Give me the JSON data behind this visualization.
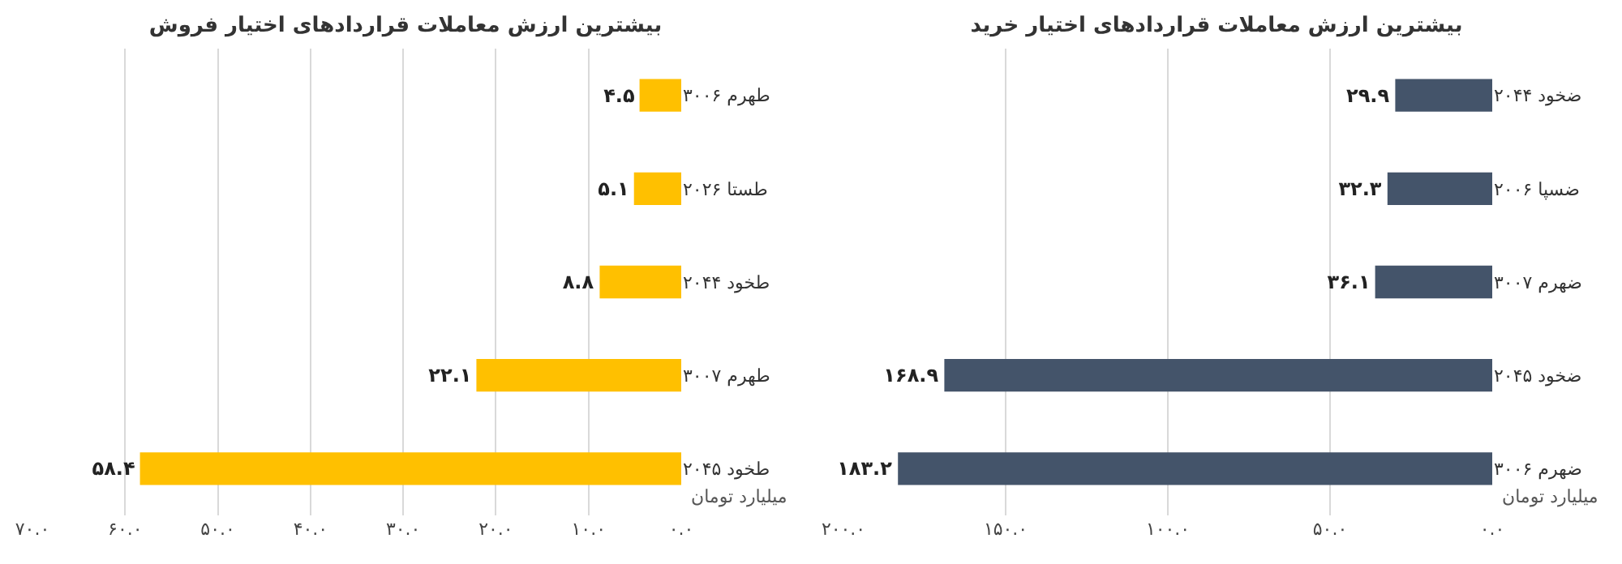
{
  "chart_data": [
    {
      "type": "bar",
      "orientation": "horizontal",
      "title": "بیشترین ارزش معاملات قراردادهای اختیار فروش",
      "xlabel": "میلیارد تومان",
      "categories": [
        "طهرم ۳۰۰۶",
        "طستا ۲۰۲۶",
        "طخود ۲۰۴۴",
        "طهرم ۳۰۰۷",
        "طخود ۲۰۴۵"
      ],
      "values": [
        4.5,
        5.1,
        8.8,
        22.1,
        58.4
      ],
      "color": "#ffc000",
      "value_labels": [
        "۴.۵",
        "۵.۱",
        "۸.۸",
        "۲۲.۱",
        "۵۸.۴"
      ],
      "xlim": [
        70,
        0
      ],
      "xticks": [
        {
          "value": 70,
          "label": "۷۰.۰"
        },
        {
          "value": 60,
          "label": "۶۰.۰"
        },
        {
          "value": 50,
          "label": "۵۰.۰"
        },
        {
          "value": 40,
          "label": "۴۰.۰"
        },
        {
          "value": 30,
          "label": "۳۰.۰"
        },
        {
          "value": 20,
          "label": "۲۰.۰"
        },
        {
          "value": 10,
          "label": "۱۰.۰"
        },
        {
          "value": 0,
          "label": "۰.۰"
        }
      ],
      "grid": "x"
    },
    {
      "type": "bar",
      "orientation": "horizontal",
      "title": "بیشترین ارزش معاملات قراردادهای اختیار خرید",
      "xlabel": "میلیارد تومان",
      "categories": [
        "ضخود ۲۰۴۴",
        "ضسپا ۲۰۰۶",
        "ضهرم ۳۰۰۷",
        "ضخود ۲۰۴۵",
        "ضهرم ۳۰۰۶"
      ],
      "values": [
        29.9,
        32.3,
        36.1,
        168.9,
        183.2
      ],
      "color": "#44546a",
      "value_labels": [
        "۲۹.۹",
        "۳۲.۳",
        "۳۶.۱",
        "۱۶۸.۹",
        "۱۸۳.۲"
      ],
      "xlim": [
        200,
        0
      ],
      "xticks": [
        {
          "value": 200,
          "label": "۲۰۰.۰"
        },
        {
          "value": 150,
          "label": "۱۵۰.۰"
        },
        {
          "value": 100,
          "label": "۱۰۰.۰"
        },
        {
          "value": 50,
          "label": "۵۰.۰"
        },
        {
          "value": 0,
          "label": "۰.۰"
        }
      ],
      "grid": "x"
    }
  ]
}
